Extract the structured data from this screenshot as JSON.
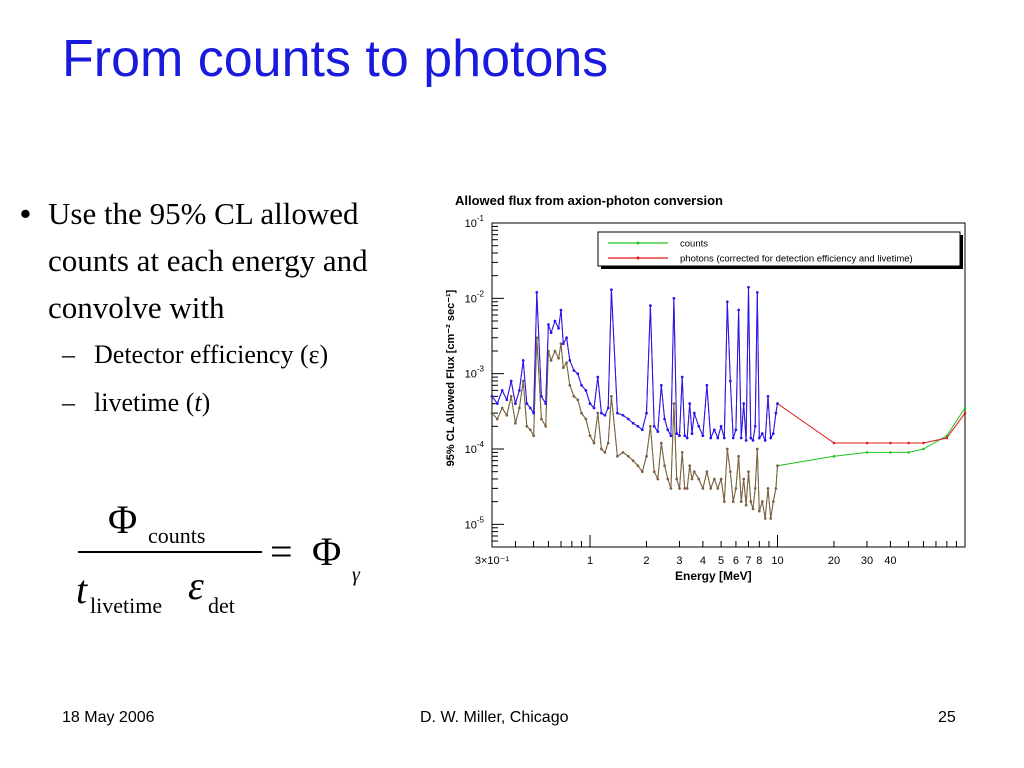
{
  "slide": {
    "title": "From counts to photons",
    "bullet_mark": "•",
    "dash_mark": "–",
    "bullet_main": "Use the 95% CL allowed counts at each energy and convolve with",
    "sub_bullets": [
      {
        "text": "Detector efficiency (",
        "symbol": "ε",
        "after": ")"
      },
      {
        "text": "livetime (",
        "symbol": "t",
        "after": ")"
      }
    ]
  },
  "formula": {
    "numerator_symbol": "Φ",
    "numerator_subscript": "counts",
    "t_symbol": "t",
    "t_subscript": "livetime",
    "eps_symbol": "ε",
    "eps_subscript": "det",
    "equals": "=",
    "rhs_symbol": "Φ",
    "rhs_subscript": "γ"
  },
  "footer": {
    "date": "18 May 2006",
    "author": "D. W. Miller, Chicago",
    "page": "25"
  },
  "chart_data": {
    "type": "line",
    "title": "Allowed flux from axion-photon conversion",
    "xlabel": "Energy [MeV]",
    "ylabel": "95% CL Allowed Flux [cm⁻² sec⁻¹]",
    "x_scale": "log",
    "y_scale": "log",
    "xlim": [
      0.3,
      100
    ],
    "ylim": [
      5e-06,
      0.1
    ],
    "x_ticks": [
      {
        "v": 0.3,
        "label": "3×10⁻¹"
      },
      {
        "v": 1,
        "label": "1"
      },
      {
        "v": 2,
        "label": "2"
      },
      {
        "v": 3,
        "label": "3"
      },
      {
        "v": 4,
        "label": "4"
      },
      {
        "v": 5,
        "label": "5"
      },
      {
        "v": 6,
        "label": "6"
      },
      {
        "v": 7,
        "label": "7"
      },
      {
        "v": 8,
        "label": "8"
      },
      {
        "v": 10,
        "label": "10"
      },
      {
        "v": 20,
        "label": "20"
      },
      {
        "v": 30,
        "label": "30"
      },
      {
        "v": 40,
        "label": "40"
      }
    ],
    "y_ticks": [
      {
        "v": 1e-05,
        "base": "10",
        "exp": "-5"
      },
      {
        "v": 0.0001,
        "base": "10",
        "exp": "-4"
      },
      {
        "v": 0.001,
        "base": "10",
        "exp": "-3"
      },
      {
        "v": 0.01,
        "base": "10",
        "exp": "-2"
      },
      {
        "v": 0.1,
        "base": "10",
        "exp": "-1"
      }
    ],
    "legend_position": "top-right",
    "grid": false,
    "series": [
      {
        "name": "counts",
        "color": "#22c422",
        "x": [
          0.3,
          0.32,
          0.34,
          0.36,
          0.38,
          0.4,
          0.42,
          0.44,
          0.46,
          0.48,
          0.5,
          0.52,
          0.55,
          0.58,
          0.6,
          0.62,
          0.65,
          0.68,
          0.7,
          0.72,
          0.75,
          0.78,
          0.82,
          0.86,
          0.9,
          0.95,
          1.0,
          1.05,
          1.1,
          1.15,
          1.2,
          1.25,
          1.3,
          1.4,
          1.5,
          1.6,
          1.7,
          1.8,
          1.9,
          2.0,
          2.1,
          2.2,
          2.3,
          2.4,
          2.5,
          2.6,
          2.7,
          2.8,
          2.9,
          3.0,
          3.1,
          3.2,
          3.3,
          3.4,
          3.5,
          3.6,
          3.8,
          4.0,
          4.2,
          4.4,
          4.6,
          4.8,
          5.0,
          5.2,
          5.4,
          5.6,
          5.8,
          6.0,
          6.2,
          6.4,
          6.6,
          6.8,
          7.0,
          7.2,
          7.4,
          7.6,
          7.8,
          8.0,
          8.3,
          8.6,
          8.9,
          9.2,
          9.5,
          9.8,
          10,
          20,
          30,
          40,
          50,
          60,
          80,
          100
        ],
        "y": [
          0.0003,
          0.00025,
          0.00035,
          0.00028,
          0.0005,
          0.00022,
          0.00035,
          0.0008,
          0.0002,
          0.00018,
          0.00015,
          0.003,
          0.00025,
          0.0002,
          0.002,
          0.0015,
          0.002,
          0.0016,
          0.0025,
          0.0012,
          0.0014,
          0.0007,
          0.0005,
          0.00045,
          0.0003,
          0.00025,
          0.00015,
          0.00012,
          0.0003,
          0.0001,
          9e-05,
          0.00012,
          0.0005,
          8e-05,
          9e-05,
          8e-05,
          7e-05,
          6e-05,
          5e-05,
          8e-05,
          0.0002,
          5e-05,
          4e-05,
          0.00012,
          6e-05,
          4e-05,
          3e-05,
          0.0004,
          4e-05,
          3e-05,
          9e-05,
          3e-05,
          3e-05,
          6e-05,
          4e-05,
          5e-05,
          4e-05,
          3e-05,
          5e-05,
          3e-05,
          4e-05,
          3e-05,
          4e-05,
          2e-05,
          0.0001,
          5e-05,
          2e-05,
          3e-05,
          8e-05,
          2e-05,
          4e-05,
          1.8e-05,
          5e-05,
          2e-05,
          1.6e-05,
          3e-05,
          0.0001,
          1.5e-05,
          2e-05,
          1.2e-05,
          3e-05,
          1.2e-05,
          2e-05,
          3e-05,
          6e-05,
          8e-05,
          9e-05,
          9e-05,
          9e-05,
          0.0001,
          0.00015,
          0.00035
        ]
      },
      {
        "name": "photons (corrected for detection efficiency and livetime)",
        "color": "#e01818",
        "x": [
          0.3,
          0.32,
          0.34,
          0.36,
          0.38,
          0.4,
          0.42,
          0.44,
          0.46,
          0.48,
          0.5,
          0.52,
          0.55,
          0.58,
          0.6,
          0.62,
          0.65,
          0.68,
          0.7,
          0.72,
          0.75,
          0.78,
          0.82,
          0.86,
          0.9,
          0.95,
          1.0,
          1.05,
          1.1,
          1.15,
          1.2,
          1.25,
          1.3,
          1.4,
          1.5,
          1.6,
          1.7,
          1.8,
          1.9,
          2.0,
          2.1,
          2.2,
          2.3,
          2.4,
          2.5,
          2.6,
          2.7,
          2.8,
          2.9,
          3.0,
          3.1,
          3.2,
          3.3,
          3.4,
          3.5,
          3.6,
          3.8,
          4.0,
          4.2,
          4.4,
          4.6,
          4.8,
          5.0,
          5.2,
          5.4,
          5.6,
          5.8,
          6.0,
          6.2,
          6.4,
          6.6,
          6.8,
          7.0,
          7.2,
          7.4,
          7.6,
          7.8,
          8.0,
          8.3,
          8.6,
          8.9,
          9.2,
          9.5,
          9.8,
          10,
          20,
          30,
          40,
          50,
          60,
          80,
          100
        ],
        "y": [
          0.0005,
          0.0004,
          0.0006,
          0.00045,
          0.0008,
          0.0004,
          0.0006,
          0.0015,
          0.0004,
          0.00035,
          0.0003,
          0.012,
          0.0005,
          0.0004,
          0.0045,
          0.0035,
          0.005,
          0.004,
          0.007,
          0.0025,
          0.003,
          0.0015,
          0.0011,
          0.001,
          0.0007,
          0.0006,
          0.0004,
          0.00035,
          0.0009,
          0.0003,
          0.00028,
          0.00035,
          0.013,
          0.0003,
          0.00028,
          0.00025,
          0.00022,
          0.0002,
          0.00018,
          0.0003,
          0.008,
          0.0002,
          0.00017,
          0.0007,
          0.00025,
          0.00018,
          0.00015,
          0.01,
          0.00016,
          0.00015,
          0.0009,
          0.00015,
          0.00014,
          0.0004,
          0.00016,
          0.0003,
          0.0002,
          0.00015,
          0.0007,
          0.00014,
          0.00018,
          0.00014,
          0.0002,
          0.00014,
          0.009,
          0.0008,
          0.00014,
          0.00018,
          0.007,
          0.00014,
          0.0004,
          0.00013,
          0.014,
          0.00014,
          0.00013,
          0.0002,
          0.012,
          0.00014,
          0.00016,
          0.00013,
          0.0005,
          0.00014,
          0.00016,
          0.0003,
          0.0004,
          0.00012,
          0.00012,
          0.00012,
          0.00012,
          0.00012,
          0.00014,
          0.0003
        ]
      },
      {
        "name": "",
        "color": "#1a1aff",
        "x": [
          0.3,
          0.32,
          0.34,
          0.36,
          0.38,
          0.4,
          0.42,
          0.44,
          0.46,
          0.48,
          0.5,
          0.52,
          0.55,
          0.58,
          0.6,
          0.62,
          0.65,
          0.68,
          0.7,
          0.72,
          0.75,
          0.78,
          0.82,
          0.86,
          0.9,
          0.95,
          1.0,
          1.05,
          1.1,
          1.15,
          1.2,
          1.25,
          1.3,
          1.4,
          1.5,
          1.6,
          1.7,
          1.8,
          1.9,
          2.0,
          2.1,
          2.2,
          2.3,
          2.4,
          2.5,
          2.6,
          2.7,
          2.8,
          2.9,
          3.0,
          3.1,
          3.2,
          3.3,
          3.4,
          3.5,
          3.6,
          3.8,
          4.0,
          4.2,
          4.4,
          4.6,
          4.8,
          5.0,
          5.2,
          5.4,
          5.6,
          5.8,
          6.0,
          6.2,
          6.4,
          6.6,
          6.8,
          7.0,
          7.2,
          7.4,
          7.6,
          7.8,
          8.0,
          8.3,
          8.6,
          8.9,
          9.2,
          9.5,
          9.8,
          10
        ],
        "y": [
          0.0005,
          0.0004,
          0.0006,
          0.00045,
          0.0008,
          0.0004,
          0.0006,
          0.0015,
          0.0004,
          0.00035,
          0.0003,
          0.012,
          0.0005,
          0.0004,
          0.0045,
          0.0035,
          0.005,
          0.004,
          0.007,
          0.0025,
          0.003,
          0.0015,
          0.0011,
          0.001,
          0.0007,
          0.0006,
          0.0004,
          0.00035,
          0.0009,
          0.0003,
          0.00028,
          0.00035,
          0.013,
          0.0003,
          0.00028,
          0.00025,
          0.00022,
          0.0002,
          0.00018,
          0.0003,
          0.008,
          0.0002,
          0.00017,
          0.0007,
          0.00025,
          0.00018,
          0.00015,
          0.01,
          0.00016,
          0.00015,
          0.0009,
          0.00015,
          0.00014,
          0.0004,
          0.00016,
          0.0003,
          0.0002,
          0.00015,
          0.0007,
          0.00014,
          0.00018,
          0.00014,
          0.0002,
          0.00014,
          0.009,
          0.0008,
          0.00014,
          0.00018,
          0.007,
          0.00014,
          0.0004,
          0.00013,
          0.014,
          0.00014,
          0.00013,
          0.0002,
          0.012,
          0.00014,
          0.00016,
          0.00013,
          0.0005,
          0.00014,
          0.00016,
          0.0003,
          0.0004
        ]
      },
      {
        "name": "",
        "color": "#8a5a4a",
        "x": [
          0.3,
          0.32,
          0.34,
          0.36,
          0.38,
          0.4,
          0.42,
          0.44,
          0.46,
          0.48,
          0.5,
          0.52,
          0.55,
          0.58,
          0.6,
          0.62,
          0.65,
          0.68,
          0.7,
          0.72,
          0.75,
          0.78,
          0.82,
          0.86,
          0.9,
          0.95,
          1.0,
          1.05,
          1.1,
          1.15,
          1.2,
          1.25,
          1.3,
          1.4,
          1.5,
          1.6,
          1.7,
          1.8,
          1.9,
          2.0,
          2.1,
          2.2,
          2.3,
          2.4,
          2.5,
          2.6,
          2.7,
          2.8,
          2.9,
          3.0,
          3.1,
          3.2,
          3.3,
          3.4,
          3.5,
          3.6,
          3.8,
          4.0,
          4.2,
          4.4,
          4.6,
          4.8,
          5.0,
          5.2,
          5.4,
          5.6,
          5.8,
          6.0,
          6.2,
          6.4,
          6.6,
          6.8,
          7.0,
          7.2,
          7.4,
          7.6,
          7.8,
          8.0,
          8.3,
          8.6,
          8.9,
          9.2,
          9.5,
          9.8,
          10
        ],
        "y": [
          0.0003,
          0.00025,
          0.00035,
          0.00028,
          0.0005,
          0.00022,
          0.00035,
          0.0008,
          0.0002,
          0.00018,
          0.00015,
          0.003,
          0.00025,
          0.0002,
          0.002,
          0.0015,
          0.002,
          0.0016,
          0.0025,
          0.0012,
          0.0014,
          0.0007,
          0.0005,
          0.00045,
          0.0003,
          0.00025,
          0.00015,
          0.00012,
          0.0003,
          0.0001,
          9e-05,
          0.00012,
          0.0005,
          8e-05,
          9e-05,
          8e-05,
          7e-05,
          6e-05,
          5e-05,
          8e-05,
          0.0002,
          5e-05,
          4e-05,
          0.00012,
          6e-05,
          4e-05,
          3e-05,
          0.0004,
          4e-05,
          3e-05,
          9e-05,
          3e-05,
          3e-05,
          6e-05,
          4e-05,
          5e-05,
          4e-05,
          3e-05,
          5e-05,
          3e-05,
          4e-05,
          3e-05,
          4e-05,
          2e-05,
          0.0001,
          5e-05,
          2e-05,
          3e-05,
          8e-05,
          2e-05,
          4e-05,
          1.8e-05,
          5e-05,
          2e-05,
          1.6e-05,
          3e-05,
          0.0001,
          1.5e-05,
          2e-05,
          1.2e-05,
          3e-05,
          1.2e-05,
          2e-05,
          3e-05,
          6e-05
        ]
      }
    ]
  }
}
